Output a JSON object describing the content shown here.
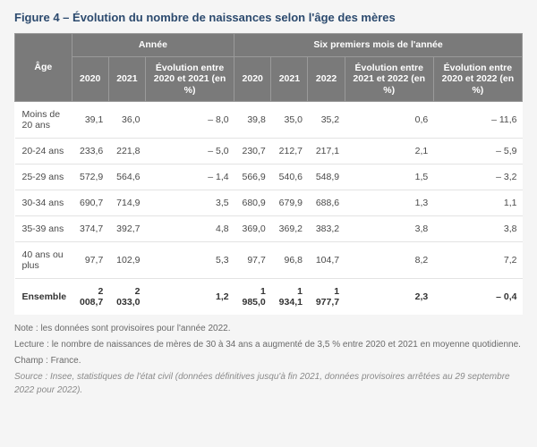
{
  "title": "Figure 4 – Évolution du nombre de naissances selon l'âge des mères",
  "headers": {
    "age": "Âge",
    "annee": "Année",
    "six_mois": "Six premiers mois de l'année",
    "y2020": "2020",
    "y2021": "2021",
    "y2022": "2022",
    "evo_2020_2021": "Évolution entre 2020 et 2021 (en %)",
    "evo_2021_2022": "Évolution entre 2021 et 2022 (en %)",
    "evo_2020_2022": "Évolution entre 2020 et 2022 (en %)"
  },
  "rows": [
    {
      "age": "Moins de 20 ans",
      "a2020": "39,1",
      "a2021": "36,0",
      "aevo": "– 8,0",
      "s2020": "39,8",
      "s2021": "35,0",
      "s2022": "35,2",
      "sevo21": "0,6",
      "sevo20": "– 11,6"
    },
    {
      "age": "20-24 ans",
      "a2020": "233,6",
      "a2021": "221,8",
      "aevo": "– 5,0",
      "s2020": "230,7",
      "s2021": "212,7",
      "s2022": "217,1",
      "sevo21": "2,1",
      "sevo20": "– 5,9"
    },
    {
      "age": "25-29 ans",
      "a2020": "572,9",
      "a2021": "564,6",
      "aevo": "– 1,4",
      "s2020": "566,9",
      "s2021": "540,6",
      "s2022": "548,9",
      "sevo21": "1,5",
      "sevo20": "– 3,2"
    },
    {
      "age": "30-34 ans",
      "a2020": "690,7",
      "a2021": "714,9",
      "aevo": "3,5",
      "s2020": "680,9",
      "s2021": "679,9",
      "s2022": "688,6",
      "sevo21": "1,3",
      "sevo20": "1,1"
    },
    {
      "age": "35-39 ans",
      "a2020": "374,7",
      "a2021": "392,7",
      "aevo": "4,8",
      "s2020": "369,0",
      "s2021": "369,2",
      "s2022": "383,2",
      "sevo21": "3,8",
      "sevo20": "3,8"
    },
    {
      "age": "40 ans ou plus",
      "a2020": "97,7",
      "a2021": "102,9",
      "aevo": "5,3",
      "s2020": "97,7",
      "s2021": "96,8",
      "s2022": "104,7",
      "sevo21": "8,2",
      "sevo20": "7,2"
    }
  ],
  "total": {
    "age": "Ensemble",
    "a2020": "2 008,7",
    "a2021": "2 033,0",
    "aevo": "1,2",
    "s2020": "1 985,0",
    "s2021": "1 934,1",
    "s2022": "1 977,7",
    "sevo21": "2,3",
    "sevo20": "– 0,4"
  },
  "notes": {
    "note": "Note : les données sont provisoires pour l'année 2022.",
    "lecture": "Lecture : le nombre de naissances de mères de 30 à 34 ans a augmenté de 3,5 % entre 2020 et 2021 en moyenne quotidienne.",
    "champ": "Champ : France.",
    "source": "Source : Insee, statistiques de l'état civil (données définitives jusqu'à fin 2021, données provisoires arrêtées au 29 septembre 2022 pour 2022)."
  },
  "style": {
    "header_bg": "#7a7a7a",
    "header_text": "#ffffff",
    "title_color": "#2c4a6e",
    "row_border": "#e3e3e3",
    "body_bg": "#f5f5f5"
  }
}
